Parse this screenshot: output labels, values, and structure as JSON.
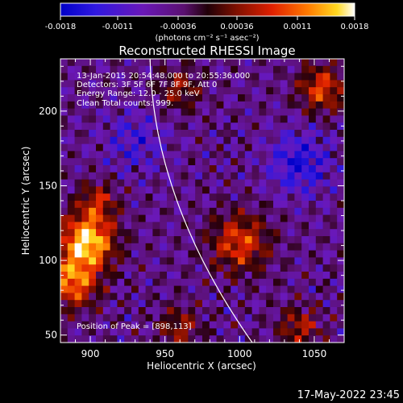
{
  "colorbar": {
    "ticks": [
      "-0.0018",
      "-0.0011",
      "-0.00036",
      "0.00036",
      "0.0011",
      "0.0018"
    ],
    "unit_label": "(photons cm⁻² s⁻¹ asec⁻²)",
    "range": [
      -0.0018,
      0.0018
    ]
  },
  "chart_data": {
    "type": "heatmap",
    "title": "Reconstructed RHESSI Image",
    "xlabel": "Heliocentric X (arcsec)",
    "ylabel": "Heliocentric Y (arcsec)",
    "xlim": [
      880,
      1070
    ],
    "ylim": [
      45,
      235
    ],
    "xticks": [
      900,
      950,
      1000,
      1050
    ],
    "yticks": [
      50,
      100,
      150,
      200
    ],
    "annotations": [
      "13-Jan-2015 20:54:48.000 to 20:55:36.000",
      "Detectors: 3F 5F 6F 7F 8F 9F, Att 0",
      "Energy Range: 12.0 - 25.0 keV",
      "Clean     Total counts: 999."
    ],
    "peak_label": "Position of Peak = [898,113]",
    "peak": [
      898,
      113
    ],
    "colormap": "rainbow-heat (blue-purple-red-orange-yellow-white)",
    "colors": {
      "background": "#000000",
      "limb": "#ffffff"
    }
  },
  "timestamp": "17-May-2022 23:45"
}
